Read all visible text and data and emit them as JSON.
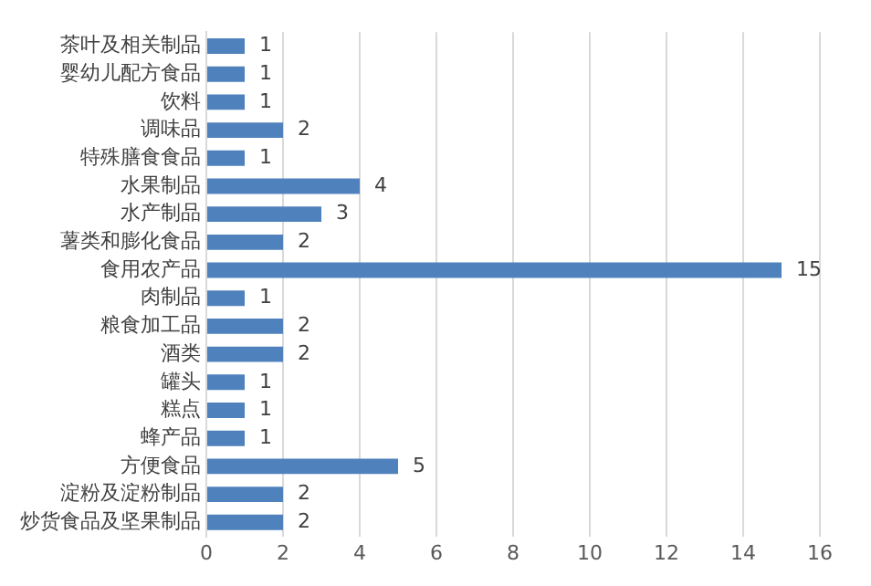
{
  "chart_data": {
    "type": "bar",
    "orientation": "horizontal",
    "categories": [
      "茶叶及相关制品",
      "婴幼儿配方食品",
      "饮料",
      "调味品",
      "特殊膳食食品",
      "水果制品",
      "水产制品",
      "薯类和膨化食品",
      "食用农产品",
      "肉制品",
      "粮食加工品",
      "酒类",
      "罐头",
      "糕点",
      "蜂产品",
      "方便食品",
      "淀粉及淀粉制品",
      "炒货食品及坚果制品"
    ],
    "values": [
      1,
      1,
      1,
      2,
      1,
      4,
      3,
      2,
      15,
      1,
      2,
      2,
      1,
      1,
      1,
      5,
      2,
      2
    ],
    "color": "#4f81bd",
    "xlim": [
      0,
      16
    ],
    "xticks": [
      0,
      2,
      4,
      6,
      8,
      10,
      12,
      14,
      16
    ],
    "grid": "x",
    "data_labels": true,
    "legend": false
  }
}
